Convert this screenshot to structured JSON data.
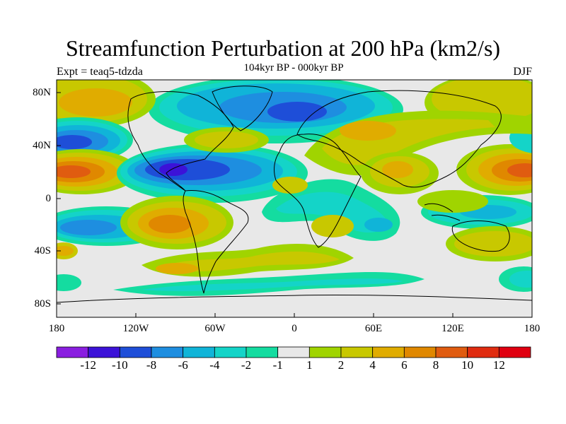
{
  "title": "Streamfunction Perturbation at 200 hPa (km2/s)",
  "subtitle": "104kyr BP - 000kyr BP",
  "experiment": "Expt = teaq5-tdzda",
  "season": "DJF",
  "lat_labels": [
    "80N",
    "40N",
    "0",
    "40S",
    "80S"
  ],
  "lon_labels": [
    "180",
    "120W",
    "60W",
    "0",
    "60E",
    "120E",
    "180"
  ],
  "colorbar": {
    "labels": [
      "-12",
      "-10",
      "-8",
      "-6",
      "-4",
      "-2",
      "-1",
      "1",
      "2",
      "4",
      "6",
      "8",
      "10",
      "12"
    ],
    "colors": [
      "#8a1ee0",
      "#3c12d8",
      "#1e4ed8",
      "#1e8ee0",
      "#10b4d8",
      "#14d4c8",
      "#14dca0",
      "#e8e8e8",
      "#a0d400",
      "#c8c800",
      "#e0ac00",
      "#e08800",
      "#e05c10",
      "#e02c10",
      "#e00010"
    ]
  },
  "colors": {
    "background": "#e8e8e8",
    "coastline": "#000000"
  }
}
